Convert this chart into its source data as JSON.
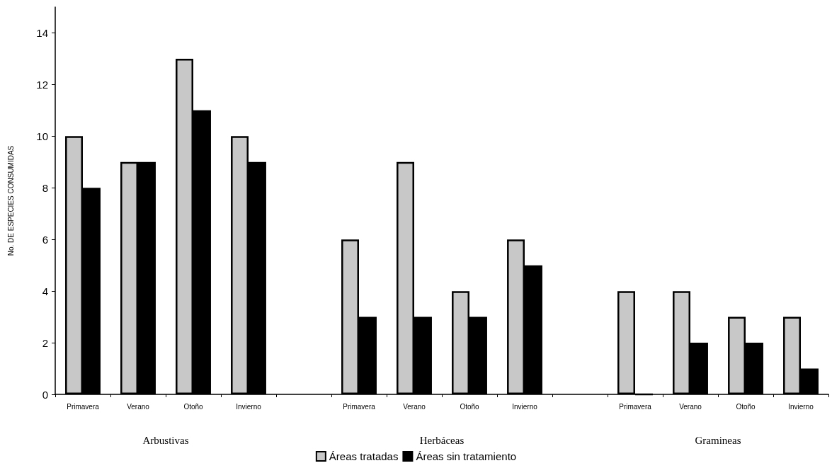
{
  "chart_data": {
    "type": "bar",
    "ylabel": "No. DE ESPECIES CONSUMIDAS",
    "categories": [
      "Primavera",
      "Verano",
      "Otoño",
      "Invierno",
      null,
      "Primavera",
      "Verano",
      "Otoño",
      "Invierno",
      null,
      "Primavera",
      "Verano",
      "Otoño",
      "Invierno"
    ],
    "series": [
      {
        "name": "Áreas tratadas",
        "color": "#c8c8c8",
        "values": [
          10,
          9,
          13,
          10,
          null,
          6,
          9,
          4,
          6,
          null,
          4,
          4,
          3,
          3
        ]
      },
      {
        "name": "Áreas sin tratamiento",
        "color": "#000000",
        "values": [
          8,
          9,
          11,
          9,
          null,
          3,
          3,
          3,
          5,
          null,
          0,
          2,
          2,
          1
        ]
      }
    ],
    "ylim": [
      0,
      15
    ],
    "yticks": [
      0,
      2,
      4,
      6,
      8,
      10,
      12,
      14
    ],
    "legend": "bottom",
    "annotations": [
      "Arbustivas",
      "Herbáceas",
      "Gramineas"
    ]
  }
}
